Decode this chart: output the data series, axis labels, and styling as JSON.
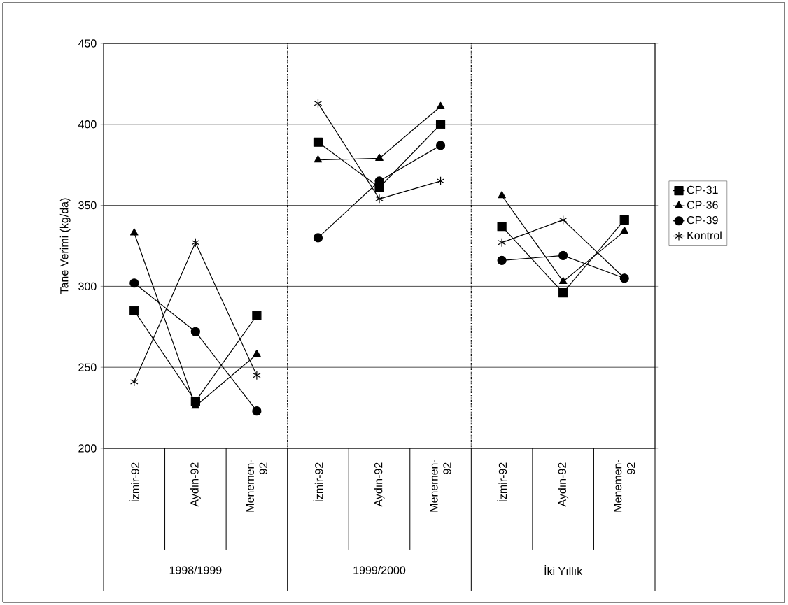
{
  "chart_data": {
    "type": "line",
    "ylabel": "Tane Verimi (kg/da)",
    "categories": [
      "İzmir-92",
      "Aydın-92",
      "Menemen-92",
      "İzmir-92",
      "Aydın-92",
      "Menemen-92",
      "İzmir-92",
      "Aydın-92",
      "Menemen-92"
    ],
    "annotations": [
      "1998/1999",
      "1999/2000",
      "İki Yıllık"
    ],
    "series": [
      {
        "name": "CP-31",
        "color": "#000000",
        "marker": "square",
        "values": [
          285,
          229,
          282,
          389,
          361,
          400,
          337,
          296,
          341
        ]
      },
      {
        "name": "CP-36",
        "color": "#000000",
        "marker": "triangle",
        "values": [
          333,
          226,
          258,
          378,
          379,
          411,
          356,
          303,
          334
        ]
      },
      {
        "name": "CP-39",
        "color": "#000000",
        "marker": "circle",
        "values": [
          302,
          272,
          223,
          330,
          365,
          387,
          316,
          319,
          305
        ]
      },
      {
        "name": "Kontrol",
        "color": "#000000",
        "marker": "cross",
        "values": [
          241,
          327,
          245,
          413,
          354,
          365,
          327,
          341,
          305
        ]
      }
    ],
    "ylim": [
      200,
      450
    ],
    "yticks": [
      200,
      250,
      300,
      350,
      400,
      450
    ],
    "grid": "y",
    "legend": "right",
    "line_style": "solid"
  }
}
